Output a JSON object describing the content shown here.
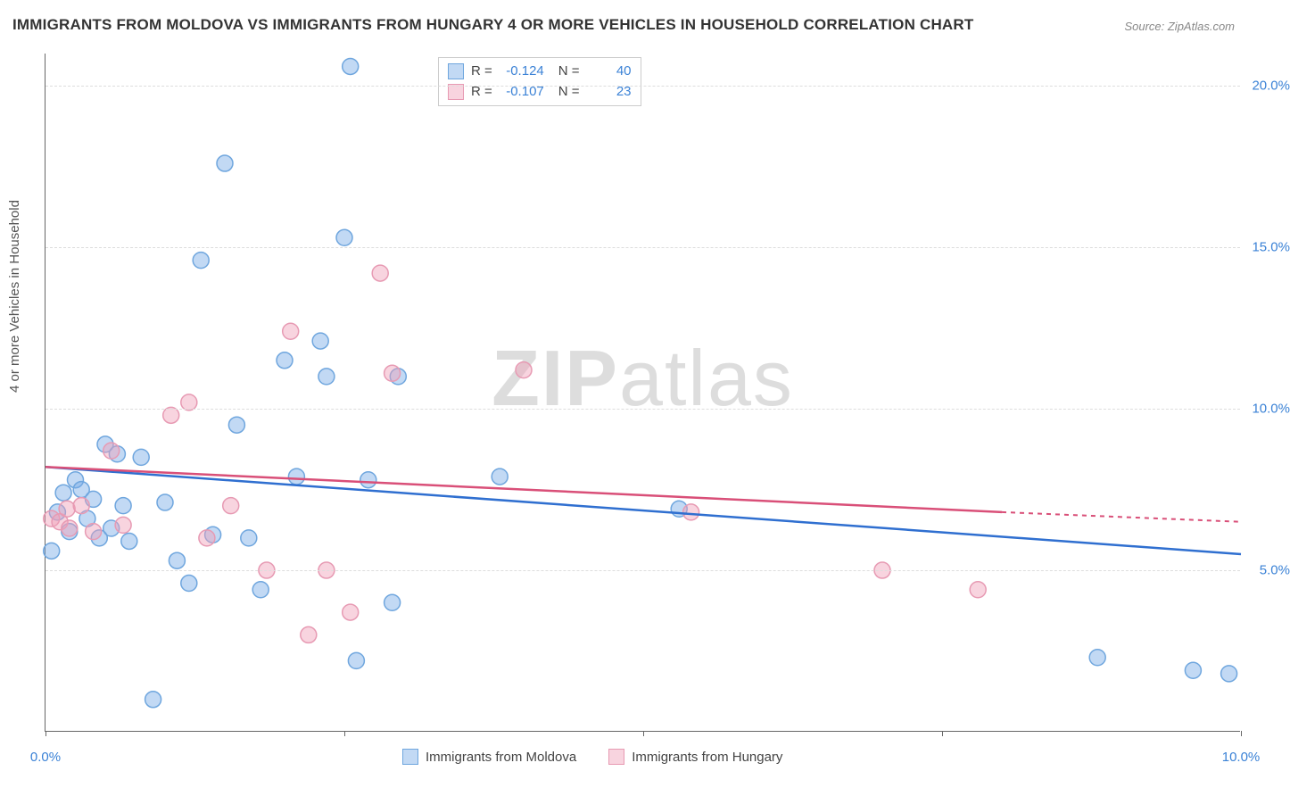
{
  "title": "IMMIGRANTS FROM MOLDOVA VS IMMIGRANTS FROM HUNGARY 4 OR MORE VEHICLES IN HOUSEHOLD CORRELATION CHART",
  "source": "Source: ZipAtlas.com",
  "ylabel": "4 or more Vehicles in Household",
  "watermark_bold": "ZIP",
  "watermark_rest": "atlas",
  "chart": {
    "type": "scatter_with_trend",
    "xlim": [
      0,
      10
    ],
    "ylim": [
      0,
      21
    ],
    "background_color": "#ffffff",
    "grid_color": "#dddddd",
    "axis_color": "#666666",
    "tick_label_color": "#3b82d6",
    "yticks": [
      {
        "v": 5,
        "label": "5.0%"
      },
      {
        "v": 10,
        "label": "10.0%"
      },
      {
        "v": 15,
        "label": "15.0%"
      },
      {
        "v": 20,
        "label": "20.0%"
      }
    ],
    "xticks": [
      {
        "v": 0,
        "label": "0.0%"
      },
      {
        "v": 2.5,
        "label": ""
      },
      {
        "v": 5,
        "label": ""
      },
      {
        "v": 7.5,
        "label": ""
      },
      {
        "v": 10,
        "label": "10.0%"
      }
    ],
    "series": [
      {
        "name": "Immigrants from Moldova",
        "color_fill": "rgba(120,170,230,0.45)",
        "color_stroke": "#6fa6de",
        "trend_color": "#2f6fd0",
        "marker_radius": 9,
        "R_label": "R =",
        "R": "-0.124",
        "N_label": "N =",
        "N": "40",
        "trend": {
          "x1": 0,
          "y1": 8.2,
          "x2": 10,
          "y2": 5.5
        },
        "points": [
          [
            0.05,
            5.6
          ],
          [
            0.1,
            6.8
          ],
          [
            0.15,
            7.4
          ],
          [
            0.2,
            6.2
          ],
          [
            0.25,
            7.8
          ],
          [
            0.3,
            7.5
          ],
          [
            0.35,
            6.6
          ],
          [
            0.4,
            7.2
          ],
          [
            0.45,
            6.0
          ],
          [
            0.5,
            8.9
          ],
          [
            0.55,
            6.3
          ],
          [
            0.6,
            8.6
          ],
          [
            0.65,
            7.0
          ],
          [
            0.7,
            5.9
          ],
          [
            0.8,
            8.5
          ],
          [
            0.9,
            1.0
          ],
          [
            1.0,
            7.1
          ],
          [
            1.1,
            5.3
          ],
          [
            1.2,
            4.6
          ],
          [
            1.3,
            14.6
          ],
          [
            1.4,
            6.1
          ],
          [
            1.5,
            17.6
          ],
          [
            1.6,
            9.5
          ],
          [
            1.7,
            6.0
          ],
          [
            1.8,
            4.4
          ],
          [
            2.0,
            11.5
          ],
          [
            2.1,
            7.9
          ],
          [
            2.3,
            12.1
          ],
          [
            2.35,
            11.0
          ],
          [
            2.5,
            15.3
          ],
          [
            2.55,
            20.6
          ],
          [
            2.6,
            2.2
          ],
          [
            2.7,
            7.8
          ],
          [
            2.9,
            4.0
          ],
          [
            2.95,
            11.0
          ],
          [
            3.8,
            7.9
          ],
          [
            5.3,
            6.9
          ],
          [
            8.8,
            2.3
          ],
          [
            9.6,
            1.9
          ],
          [
            9.9,
            1.8
          ]
        ]
      },
      {
        "name": "Immigrants from Hungary",
        "color_fill": "rgba(240,160,185,0.45)",
        "color_stroke": "#e79ab3",
        "trend_color": "#d94f78",
        "marker_radius": 9,
        "R_label": "R =",
        "R": "-0.107",
        "N_label": "N =",
        "N": "23",
        "trend": {
          "x1": 0,
          "y1": 8.2,
          "x2": 8.0,
          "y2": 6.8,
          "x3": 10,
          "y3": 6.5
        },
        "points": [
          [
            0.05,
            6.6
          ],
          [
            0.12,
            6.5
          ],
          [
            0.18,
            6.9
          ],
          [
            0.2,
            6.3
          ],
          [
            0.3,
            7.0
          ],
          [
            0.4,
            6.2
          ],
          [
            0.55,
            8.7
          ],
          [
            0.65,
            6.4
          ],
          [
            1.05,
            9.8
          ],
          [
            1.2,
            10.2
          ],
          [
            1.35,
            6.0
          ],
          [
            1.55,
            7.0
          ],
          [
            1.85,
            5.0
          ],
          [
            2.05,
            12.4
          ],
          [
            2.2,
            3.0
          ],
          [
            2.35,
            5.0
          ],
          [
            2.55,
            3.7
          ],
          [
            2.8,
            14.2
          ],
          [
            2.9,
            11.1
          ],
          [
            4.0,
            11.2
          ],
          [
            5.4,
            6.8
          ],
          [
            7.0,
            5.0
          ],
          [
            7.8,
            4.4
          ]
        ]
      }
    ],
    "bottom_legend": [
      {
        "swatch_fill": "rgba(120,170,230,0.45)",
        "swatch_stroke": "#6fa6de",
        "label": "Immigrants from Moldova"
      },
      {
        "swatch_fill": "rgba(240,160,185,0.45)",
        "swatch_stroke": "#e79ab3",
        "label": "Immigrants from Hungary"
      }
    ]
  }
}
